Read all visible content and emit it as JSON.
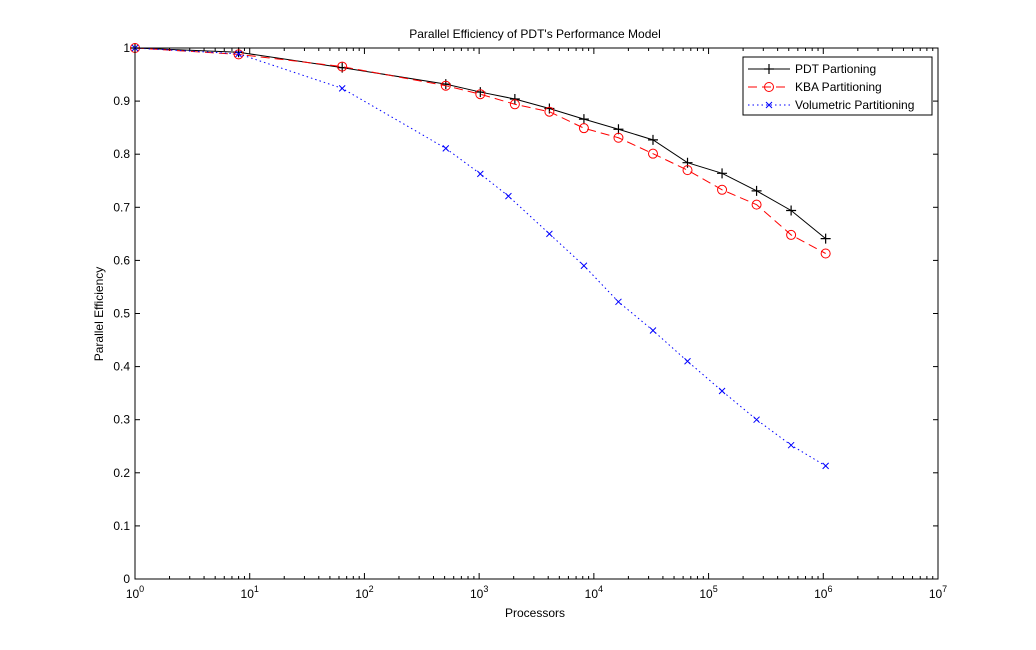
{
  "chart_data": {
    "type": "line",
    "title": "Parallel Efficiency of PDT's Performance Model",
    "xlabel": "Processors",
    "ylabel": "Parallel Efficiency",
    "xscale": "log",
    "xlim": [
      1,
      10000000
    ],
    "ylim": [
      0,
      1
    ],
    "grid": false,
    "legend_position": "top-right",
    "x_ticks": [
      {
        "value": 1,
        "base": "10",
        "exp": "0"
      },
      {
        "value": 10,
        "base": "10",
        "exp": "1"
      },
      {
        "value": 100,
        "base": "10",
        "exp": "2"
      },
      {
        "value": 1000,
        "base": "10",
        "exp": "3"
      },
      {
        "value": 10000,
        "base": "10",
        "exp": "4"
      },
      {
        "value": 100000,
        "base": "10",
        "exp": "5"
      },
      {
        "value": 1000000,
        "base": "10",
        "exp": "6"
      },
      {
        "value": 10000000,
        "base": "10",
        "exp": "7"
      }
    ],
    "y_ticks": [
      {
        "value": 0,
        "label": "0"
      },
      {
        "value": 0.1,
        "label": "0.1"
      },
      {
        "value": 0.2,
        "label": "0.2"
      },
      {
        "value": 0.3,
        "label": "0.3"
      },
      {
        "value": 0.4,
        "label": "0.4"
      },
      {
        "value": 0.5,
        "label": "0.5"
      },
      {
        "value": 0.6,
        "label": "0.6"
      },
      {
        "value": 0.7,
        "label": "0.7"
      },
      {
        "value": 0.8,
        "label": "0.8"
      },
      {
        "value": 0.9,
        "label": "0.9"
      },
      {
        "value": 1,
        "label": "1"
      }
    ],
    "series": [
      {
        "name": "PDT Partioning",
        "color": "#000000",
        "line_style": "solid",
        "marker": "plus",
        "x": [
          1,
          8,
          64,
          512,
          1024,
          2048,
          4096,
          8192,
          16384,
          32768,
          65536,
          131072,
          262144,
          524288,
          1048576
        ],
        "y": [
          1.0,
          0.992,
          0.963,
          0.932,
          0.917,
          0.904,
          0.886,
          0.866,
          0.847,
          0.827,
          0.784,
          0.764,
          0.731,
          0.694,
          0.641
        ]
      },
      {
        "name": "KBA Partitioning",
        "color": "#ff0000",
        "line_style": "dashed",
        "marker": "circle",
        "x": [
          1,
          8,
          64,
          512,
          1024,
          2048,
          4096,
          8192,
          16384,
          32768,
          65536,
          131072,
          262144,
          524288,
          1048576
        ],
        "y": [
          1.0,
          0.988,
          0.965,
          0.929,
          0.913,
          0.894,
          0.88,
          0.849,
          0.831,
          0.801,
          0.77,
          0.733,
          0.705,
          0.648,
          0.613
        ]
      },
      {
        "name": "Volumetric Partitioning",
        "color": "#0000ff",
        "line_style": "dotted",
        "marker": "x",
        "x": [
          1,
          8,
          64,
          512,
          1024,
          1800,
          4096,
          8192,
          16384,
          32768,
          65536,
          131072,
          262144,
          524288,
          1048576
        ],
        "y": [
          1.0,
          0.989,
          0.924,
          0.811,
          0.763,
          0.721,
          0.65,
          0.59,
          0.522,
          0.468,
          0.41,
          0.354,
          0.3,
          0.252,
          0.213
        ]
      }
    ]
  }
}
